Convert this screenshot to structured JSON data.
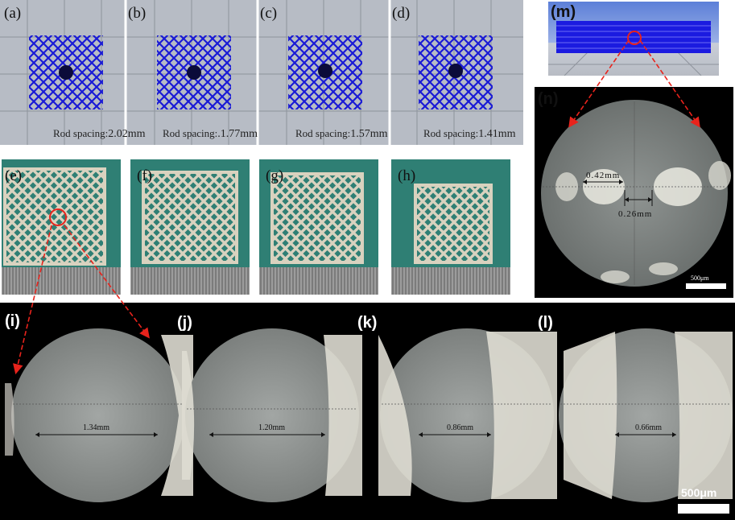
{
  "colors": {
    "lattice_blue": "#1a1ad6",
    "model_bg": "#b7bcc5",
    "photo_green": "#2f7f74",
    "print_beige": "#d9d2bf",
    "arrow_red": "#e8231c",
    "micro_bg": "#000000"
  },
  "top_panels": [
    {
      "label": "(a)",
      "rod_prefix": "Rod",
      "rod_text": "spacing:",
      "rod_value": "2.02mm"
    },
    {
      "label": "(b)",
      "rod_prefix": "Rod",
      "rod_text": "spacing:",
      "rod_value": ".1.77mm"
    },
    {
      "label": "(c)",
      "rod_prefix": "Rod",
      "rod_text": "spacing:",
      "rod_value": "1.57mm"
    },
    {
      "label": "(d)",
      "rod_prefix": "Rod",
      "rod_text": "spacing:",
      "rod_value": "1.41mm"
    }
  ],
  "photo_panels": [
    {
      "label": "(e)"
    },
    {
      "label": "(f)"
    },
    {
      "label": "(g)"
    },
    {
      "label": "(h)"
    }
  ],
  "panel_m": {
    "label": "(m)"
  },
  "panel_n": {
    "label": "(n)",
    "measure_1": "0.42mm",
    "measure_2": "0.26mm",
    "scalebar": "500μm"
  },
  "micro_panels": [
    {
      "label": "(i)",
      "measure": "1.34mm"
    },
    {
      "label": "(j)",
      "measure": "1.20mm"
    },
    {
      "label": "(k)",
      "measure": "0.86mm"
    },
    {
      "label": "(l)",
      "measure": "0.66mm"
    }
  ],
  "micro_scalebar": "500μm"
}
